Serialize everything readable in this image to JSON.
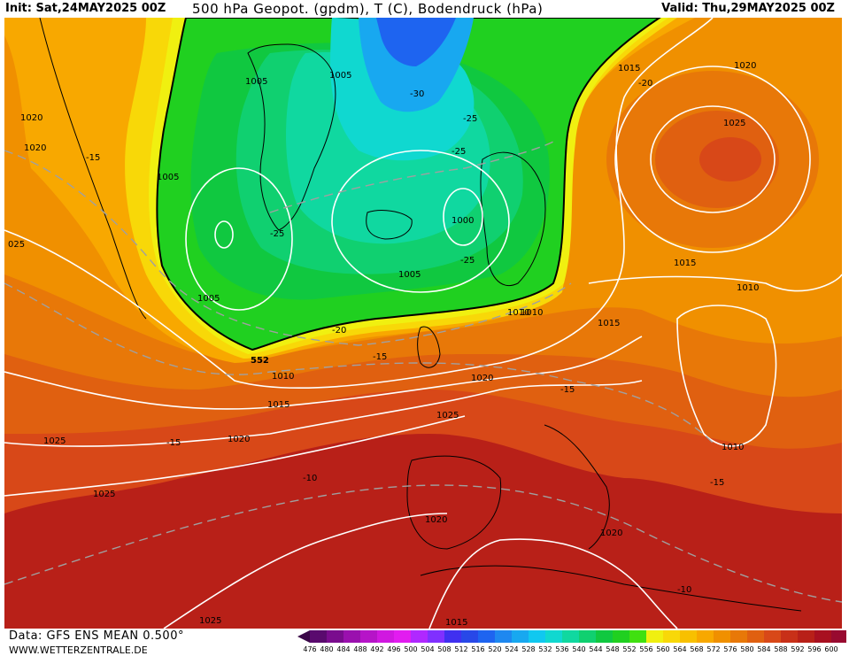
{
  "header": {
    "init": "Init: Sat,24MAY2025 00Z",
    "title": "500 hPa Geopot. (gpdm), T (C), Bodendruck (hPa)",
    "valid": "Valid: Thu,29MAY2025 00Z"
  },
  "footer": {
    "data_source": "Data: GFS ENS MEAN 0.500°",
    "website": "WWW.WETTERZENTRALE.DE"
  },
  "colorbar": {
    "labels": [
      "476",
      "480",
      "484",
      "488",
      "492",
      "496",
      "500",
      "504",
      "508",
      "512",
      "516",
      "520",
      "524",
      "528",
      "532",
      "536",
      "540",
      "544",
      "548",
      "552",
      "556",
      "560",
      "564",
      "568",
      "572",
      "576",
      "580",
      "584",
      "588",
      "592",
      "596",
      "600"
    ],
    "colors": [
      "#5a0a6e",
      "#7a0c8e",
      "#9a10ae",
      "#b614c8",
      "#d018e0",
      "#e21cf0",
      "#b028ff",
      "#8030ff",
      "#4030f0",
      "#2848e8",
      "#1e64f0",
      "#1e88f0",
      "#18a8f0",
      "#10c8f0",
      "#10d8d0",
      "#10d8a0",
      "#10d070",
      "#10c840",
      "#20d020",
      "#40e010",
      "#f0f010",
      "#f8d808",
      "#f8c000",
      "#f8a800",
      "#f09000",
      "#e87808",
      "#e06010",
      "#d84818",
      "#c83018",
      "#b82018",
      "#a81020",
      "#980a30"
    ]
  },
  "map_labels": {
    "isobars": [
      "1020",
      "1020",
      "025",
      "1005",
      "1005",
      "1005",
      "1005",
      "1005",
      "1000",
      "1015",
      "1020",
      "1025",
      "1015",
      "1010",
      "1010",
      "1010",
      "1015",
      "1010",
      "1015",
      "1020",
      "1025",
      "1020",
      "1025",
      "1025",
      "1020",
      "1020",
      "1025",
      "1015",
      "1010"
    ],
    "isotherms": [
      "-15",
      "-30",
      "-25",
      "-25",
      "-25",
      "-25",
      "-20",
      "-20",
      "-15",
      "-15",
      "-15",
      "-10",
      "-15",
      "-10"
    ],
    "geopotential_contour": "552"
  }
}
